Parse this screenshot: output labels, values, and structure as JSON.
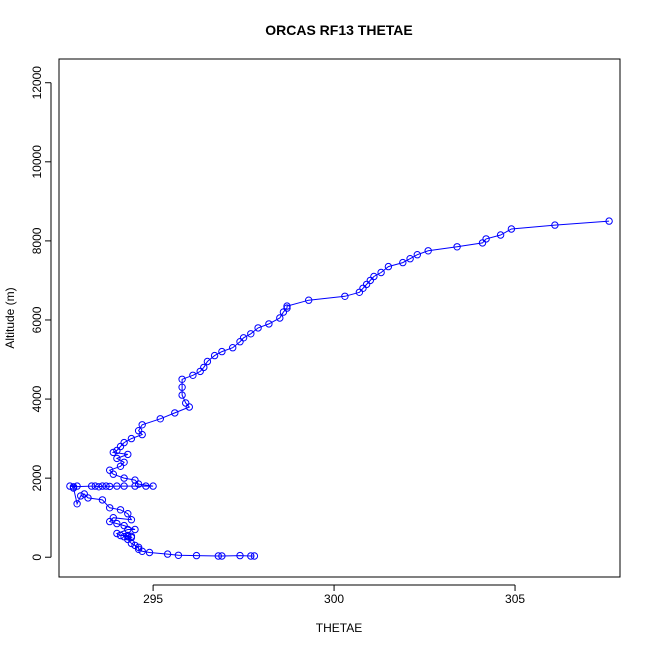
{
  "chart_data": {
    "type": "line",
    "title": "ORCAS RF13 THETAE",
    "xlabel": "THETAE",
    "ylabel": "Altitude (m)",
    "xlim": [
      292.4,
      307.9
    ],
    "ylim": [
      -500,
      12600
    ],
    "x_ticks": [
      295,
      300,
      305
    ],
    "y_ticks": [
      0,
      2000,
      4000,
      6000,
      8000,
      10000,
      12000
    ],
    "grid": false,
    "legend": "none",
    "series": [
      {
        "color": "#0000ff",
        "marker": "open-circle",
        "x": [
          297.8,
          297.7,
          297.4,
          296.9,
          296.8,
          296.2,
          295.7,
          295.4,
          294.9,
          294.7,
          294.6,
          294.6,
          294.5,
          294.4,
          294.3,
          294.4,
          294.3,
          294.4,
          294.2,
          294.3,
          294.1,
          294.0,
          294.3,
          294.5,
          294.2,
          294.0,
          293.8,
          293.9,
          294.4,
          294.3,
          294.1,
          293.8,
          293.6,
          293.2,
          293.1,
          293.0,
          292.9,
          292.8,
          292.9,
          292.7,
          292.8,
          293.3,
          293.4,
          293.5,
          293.6,
          293.7,
          293.8,
          294.0,
          294.2,
          294.5,
          294.8,
          295.0,
          294.6,
          294.5,
          294.2,
          293.9,
          293.8,
          294.1,
          294.2,
          294.0,
          294.3,
          293.9,
          294.0,
          294.1,
          294.2,
          294.4,
          294.7,
          294.6,
          294.7,
          295.2,
          295.6,
          296.0,
          295.9,
          295.8,
          295.8,
          295.8,
          296.1,
          296.3,
          296.4,
          296.5,
          296.7,
          296.9,
          297.2,
          297.4,
          297.5,
          297.7,
          297.9,
          298.2,
          298.5,
          298.6,
          298.7,
          298.7,
          299.3,
          300.3,
          300.7,
          300.8,
          300.9,
          301.0,
          301.1,
          301.3,
          301.5,
          301.9,
          302.1,
          302.3,
          302.6,
          303.4,
          304.1,
          304.2,
          304.6,
          304.9,
          306.1,
          307.6
        ],
        "y": [
          30,
          30,
          40,
          30,
          30,
          40,
          50,
          80,
          120,
          150,
          200,
          250,
          300,
          350,
          450,
          500,
          520,
          530,
          520,
          550,
          550,
          600,
          700,
          700,
          800,
          850,
          900,
          1000,
          950,
          1100,
          1200,
          1250,
          1450,
          1500,
          1600,
          1550,
          1350,
          1750,
          1800,
          1800,
          1780,
          1800,
          1800,
          1780,
          1800,
          1800,
          1790,
          1800,
          1800,
          1800,
          1800,
          1800,
          1850,
          1950,
          2000,
          2100,
          2200,
          2300,
          2400,
          2500,
          2600,
          2650,
          2700,
          2800,
          2900,
          3000,
          3100,
          3200,
          3350,
          3500,
          3650,
          3800,
          3900,
          4100,
          4300,
          4500,
          4600,
          4700,
          4800,
          4950,
          5100,
          5200,
          5300,
          5450,
          5550,
          5650,
          5800,
          5900,
          6050,
          6200,
          6300,
          6350,
          6500,
          6600,
          6700,
          6800,
          6900,
          7000,
          7100,
          7200,
          7350,
          7450,
          7550,
          7650,
          7750,
          7850,
          7950,
          8050,
          8150,
          8300,
          8400,
          8500
        ]
      }
    ]
  }
}
